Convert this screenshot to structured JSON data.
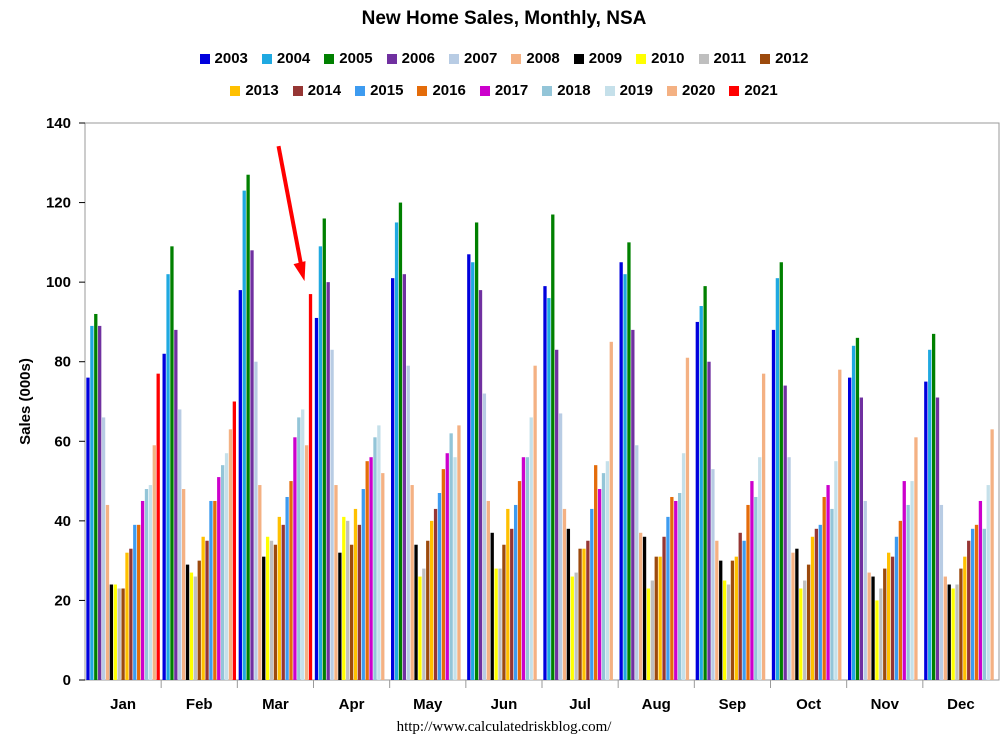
{
  "chart_data": {
    "type": "bar",
    "title": "New Home Sales, Monthly, NSA",
    "xlabel": "",
    "ylabel": "Sales (000s)",
    "ylim": [
      0,
      140
    ],
    "yticks": [
      "0",
      "20",
      "40",
      "60",
      "80",
      "100",
      "120",
      "140"
    ],
    "categories": [
      "Jan",
      "Feb",
      "Mar",
      "Apr",
      "May",
      "Jun",
      "Jul",
      "Aug",
      "Sep",
      "Oct",
      "Nov",
      "Dec"
    ],
    "series": [
      {
        "name": "2003",
        "color": "#0000dd",
        "values": [
          76,
          82,
          98,
          91,
          101,
          107,
          99,
          105,
          90,
          88,
          76,
          75
        ]
      },
      {
        "name": "2004",
        "color": "#1fa9e1",
        "values": [
          89,
          102,
          123,
          109,
          115,
          105,
          96,
          102,
          94,
          101,
          84,
          83
        ]
      },
      {
        "name": "2005",
        "color": "#008000",
        "values": [
          92,
          109,
          127,
          116,
          120,
          115,
          117,
          110,
          99,
          105,
          86,
          87
        ]
      },
      {
        "name": "2006",
        "color": "#7030a0",
        "values": [
          89,
          88,
          108,
          100,
          102,
          98,
          83,
          88,
          80,
          74,
          71,
          71
        ]
      },
      {
        "name": "2007",
        "color": "#b8cce4",
        "values": [
          66,
          68,
          80,
          83,
          79,
          72,
          67,
          59,
          53,
          56,
          45,
          44
        ]
      },
      {
        "name": "2008",
        "color": "#f4b183",
        "values": [
          44,
          48,
          49,
          49,
          49,
          45,
          43,
          37,
          35,
          32,
          27,
          26
        ]
      },
      {
        "name": "2009",
        "color": "#000000",
        "values": [
          24,
          29,
          31,
          32,
          34,
          37,
          38,
          36,
          30,
          33,
          26,
          24
        ]
      },
      {
        "name": "2010",
        "color": "#ffff00",
        "values": [
          24,
          27,
          36,
          41,
          26,
          28,
          26,
          23,
          25,
          23,
          20,
          23
        ]
      },
      {
        "name": "2011",
        "color": "#bfbfbf",
        "values": [
          23,
          26,
          35,
          40,
          28,
          28,
          27,
          25,
          24,
          25,
          23,
          24
        ]
      },
      {
        "name": "2012",
        "color": "#9c4a0d",
        "values": [
          23,
          30,
          34,
          34,
          35,
          34,
          33,
          31,
          30,
          29,
          28,
          28
        ]
      },
      {
        "name": "2013",
        "color": "#ffc000",
        "values": [
          32,
          36,
          41,
          43,
          40,
          43,
          33,
          31,
          31,
          36,
          32,
          31
        ]
      },
      {
        "name": "2014",
        "color": "#963634",
        "values": [
          33,
          35,
          39,
          39,
          43,
          38,
          35,
          36,
          37,
          38,
          31,
          35
        ]
      },
      {
        "name": "2015",
        "color": "#3d9bf0",
        "values": [
          39,
          45,
          46,
          48,
          47,
          44,
          43,
          41,
          35,
          39,
          36,
          38
        ]
      },
      {
        "name": "2016",
        "color": "#e46c0a",
        "values": [
          39,
          45,
          50,
          55,
          53,
          50,
          54,
          46,
          44,
          46,
          40,
          39
        ]
      },
      {
        "name": "2017",
        "color": "#cc00cc",
        "values": [
          45,
          51,
          61,
          56,
          57,
          56,
          48,
          45,
          50,
          49,
          50,
          45
        ]
      },
      {
        "name": "2018",
        "color": "#93c5d8",
        "values": [
          48,
          54,
          66,
          61,
          62,
          56,
          52,
          47,
          46,
          43,
          44,
          38
        ]
      },
      {
        "name": "2019",
        "color": "#c5e0ea",
        "values": [
          49,
          57,
          68,
          64,
          56,
          66,
          55,
          57,
          56,
          55,
          50,
          49
        ]
      },
      {
        "name": "2020",
        "color": "#f4b183",
        "values": [
          59,
          63,
          59,
          52,
          64,
          79,
          85,
          81,
          77,
          78,
          61,
          63
        ]
      },
      {
        "name": "2021",
        "color": "#ff0000",
        "values": [
          77,
          70,
          97,
          null,
          null,
          null,
          null,
          null,
          null,
          null,
          null,
          null
        ]
      }
    ],
    "annotations": [
      {
        "type": "arrow",
        "color": "#ff0000",
        "target": "Mar 2021"
      }
    ],
    "grid": false,
    "legend": "top"
  },
  "source_note": "http://www.calculatedriskblog.com/"
}
